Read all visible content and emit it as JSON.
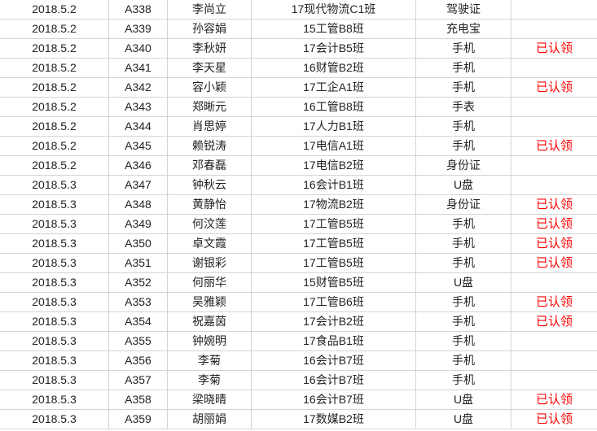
{
  "colors": {
    "claimed": "#ff0000",
    "grid": "#d4d4d4"
  },
  "rows": [
    {
      "date": "2018.5.2",
      "id": "A338",
      "name": "李尚立",
      "class": "17现代物流C1班",
      "item": "驾驶证",
      "status": ""
    },
    {
      "date": "2018.5.2",
      "id": "A339",
      "name": "孙容娟",
      "class": "15工管B8班",
      "item": "充电宝",
      "status": ""
    },
    {
      "date": "2018.5.2",
      "id": "A340",
      "name": "李秋妍",
      "class": "17会计B5班",
      "item": "手机",
      "status": "已认领"
    },
    {
      "date": "2018.5.2",
      "id": "A341",
      "name": "李天星",
      "class": "16财管B2班",
      "item": "手机",
      "status": ""
    },
    {
      "date": "2018.5.2",
      "id": "A342",
      "name": "容小颖",
      "class": "17工企A1班",
      "item": "手机",
      "status": "已认领"
    },
    {
      "date": "2018.5.2",
      "id": "A343",
      "name": "郑晰元",
      "class": "16工管B8班",
      "item": "手表",
      "status": ""
    },
    {
      "date": "2018.5.2",
      "id": "A344",
      "name": "肖思婷",
      "class": "17人力B1班",
      "item": "手机",
      "status": ""
    },
    {
      "date": "2018.5.2",
      "id": "A345",
      "name": "赖锐涛",
      "class": "17电信A1班",
      "item": "手机",
      "status": "已认领"
    },
    {
      "date": "2018.5.2",
      "id": "A346",
      "name": "邓春磊",
      "class": "17电信B2班",
      "item": "身份证",
      "status": ""
    },
    {
      "date": "2018.5.3",
      "id": "A347",
      "name": "钟秋云",
      "class": "16会计B1班",
      "item": "U盘",
      "status": ""
    },
    {
      "date": "2018.5.3",
      "id": "A348",
      "name": "黄静怡",
      "class": "17物流B2班",
      "item": "身份证",
      "status": "已认领"
    },
    {
      "date": "2018.5.3",
      "id": "A349",
      "name": "何汶莲",
      "class": "17工管B5班",
      "item": "手机",
      "status": "已认领"
    },
    {
      "date": "2018.5.3",
      "id": "A350",
      "name": "卓文霞",
      "class": "17工管B5班",
      "item": "手机",
      "status": "已认领"
    },
    {
      "date": "2018.5.3",
      "id": "A351",
      "name": "谢银彩",
      "class": "17工管B5班",
      "item": "手机",
      "status": "已认领"
    },
    {
      "date": "2018.5.3",
      "id": "A352",
      "name": "何丽华",
      "class": "15财管B5班",
      "item": "U盘",
      "status": ""
    },
    {
      "date": "2018.5.3",
      "id": "A353",
      "name": "吴雅颖",
      "class": "17工管B6班",
      "item": "手机",
      "status": "已认领"
    },
    {
      "date": "2018.5.3",
      "id": "A354",
      "name": "祝嘉茵",
      "class": "17会计B2班",
      "item": "手机",
      "status": "已认领"
    },
    {
      "date": "2018.5.3",
      "id": "A355",
      "name": "钟婉明",
      "class": "17食品B1班",
      "item": "手机",
      "status": ""
    },
    {
      "date": "2018.5.3",
      "id": "A356",
      "name": "李菊",
      "class": "16会计B7班",
      "item": "手机",
      "status": ""
    },
    {
      "date": "2018.5.3",
      "id": "A357",
      "name": "李菊",
      "class": "16会计B7班",
      "item": "手机",
      "status": ""
    },
    {
      "date": "2018.5.3",
      "id": "A358",
      "name": "梁晓晴",
      "class": "16会计B7班",
      "item": "U盘",
      "status": "已认领"
    },
    {
      "date": "2018.5.3",
      "id": "A359",
      "name": "胡丽娟",
      "class": "17数媒B2班",
      "item": "U盘",
      "status": "已认领"
    }
  ]
}
